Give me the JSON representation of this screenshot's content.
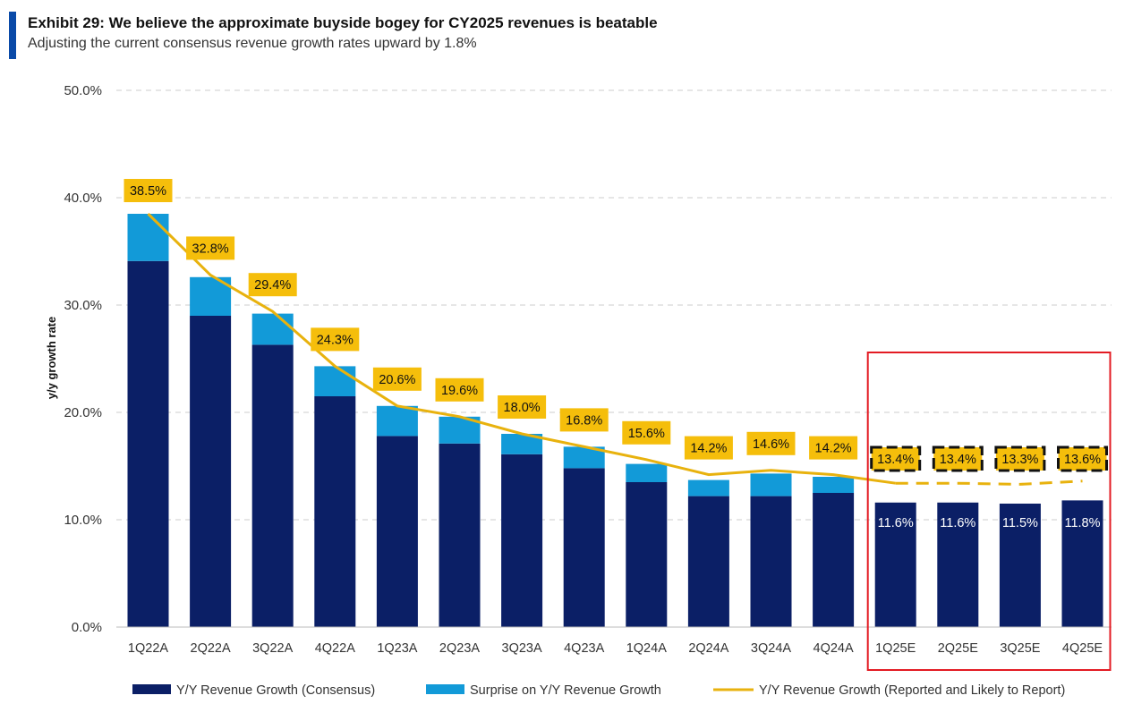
{
  "header": {
    "title": "Exhibit 29: We believe the approximate buyside bogey for CY2025 revenues is beatable",
    "subtitle": "Adjusting the current consensus revenue growth rates upward by 1.8%"
  },
  "colors": {
    "consensus": "#0b1f66",
    "surprise": "#129ad8",
    "line": "#e8b20e",
    "label_fill": "#f5be0b",
    "highlight_box": "#e31b23",
    "grid": "#d8d8d8"
  },
  "chart_data": {
    "type": "bar",
    "stacked": true,
    "ylabel": "y/y growth rate",
    "ylim": [
      0,
      50
    ],
    "yticks": [
      0,
      10,
      20,
      30,
      40,
      50
    ],
    "ytick_labels": [
      "0.0%",
      "10.0%",
      "20.0%",
      "30.0%",
      "40.0%",
      "50.0%"
    ],
    "categories": [
      "1Q22A",
      "2Q22A",
      "3Q22A",
      "4Q22A",
      "1Q23A",
      "2Q23A",
      "3Q23A",
      "4Q23A",
      "1Q24A",
      "2Q24A",
      "3Q24A",
      "4Q24A",
      "1Q25E",
      "2Q25E",
      "3Q25E",
      "4Q25E"
    ],
    "series": [
      {
        "name": "Y/Y Revenue Growth (Consensus)",
        "kind": "bar",
        "values": [
          34.1,
          29.0,
          26.3,
          21.5,
          17.8,
          17.1,
          16.1,
          14.8,
          13.5,
          12.2,
          12.2,
          12.5,
          11.6,
          11.6,
          11.5,
          11.8
        ]
      },
      {
        "name": "Surprise on Y/Y Revenue Growth",
        "kind": "bar",
        "values": [
          4.4,
          3.6,
          2.9,
          2.8,
          2.8,
          2.5,
          1.9,
          2.0,
          1.7,
          1.5,
          2.1,
          1.5,
          0,
          0,
          0,
          0
        ]
      },
      {
        "name": "Y/Y Revenue Growth (Reported and Likely to Report)",
        "kind": "line",
        "values": [
          38.5,
          32.8,
          29.4,
          24.3,
          20.6,
          19.6,
          18.0,
          16.8,
          15.6,
          14.2,
          14.6,
          14.2,
          13.4,
          13.4,
          13.3,
          13.6
        ],
        "dashed_from_index": 12
      }
    ],
    "line_labels": [
      "38.5%",
      "32.8%",
      "29.4%",
      "24.3%",
      "20.6%",
      "19.6%",
      "18.0%",
      "16.8%",
      "15.6%",
      "14.2%",
      "14.6%",
      "14.2%",
      "13.4%",
      "13.4%",
      "13.3%",
      "13.6%"
    ],
    "consensus_labels": [
      "11.6%",
      "11.6%",
      "11.5%",
      "11.8%"
    ],
    "consensus_label_start_index": 12,
    "highlight_range": [
      12,
      15
    ],
    "legend_position": "bottom"
  }
}
